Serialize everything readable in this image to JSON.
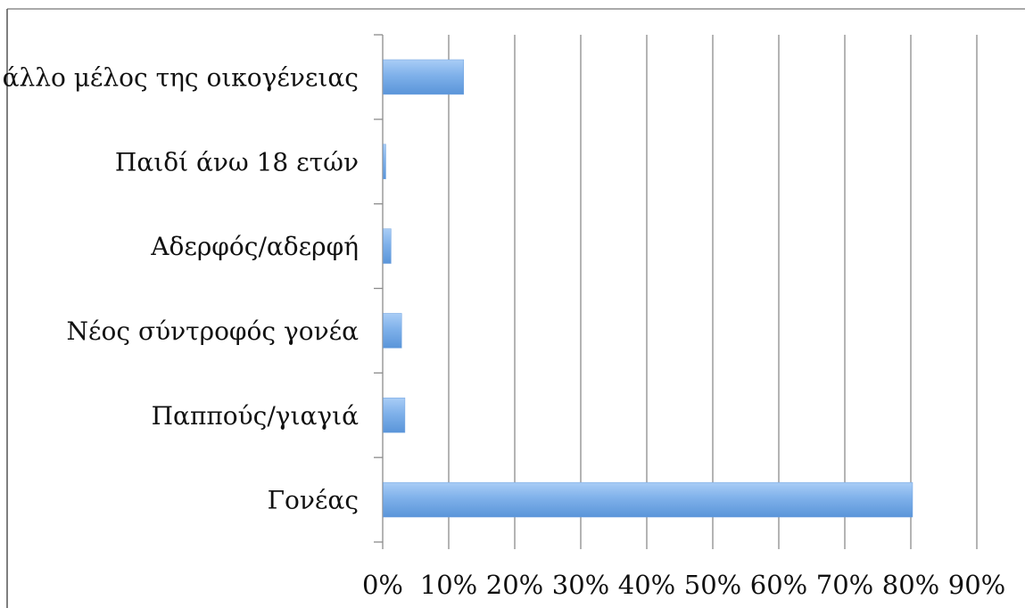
{
  "chart_data": {
    "type": "bar",
    "orientation": "horizontal",
    "title": "",
    "xlabel": "",
    "ylabel": "",
    "categories": [
      "άλλο μέλος της οικογένειας",
      "Παιδί άνω 18 ετών",
      "Αδερφός/αδερφή",
      "Νέος σύντροφός γονέα",
      "Παππούς/γιαγιά",
      "Γονέας"
    ],
    "values": [
      12.2,
      0.4,
      1.2,
      2.8,
      3.3,
      80.2
    ],
    "xlim": [
      0,
      90
    ],
    "xticks": [
      "0%",
      "10%",
      "20%",
      "30%",
      "40%",
      "50%",
      "60%",
      "70%",
      "80%",
      "90%"
    ],
    "grid": true,
    "legend": "none",
    "colors": {
      "bar_top": "#a9cdf6",
      "bar_mid": "#7fb1ea",
      "bar_bottom": "#5a95d9",
      "grid": "#8c8c8c",
      "axis": "#8c8c8c",
      "frame": "#555555"
    }
  }
}
